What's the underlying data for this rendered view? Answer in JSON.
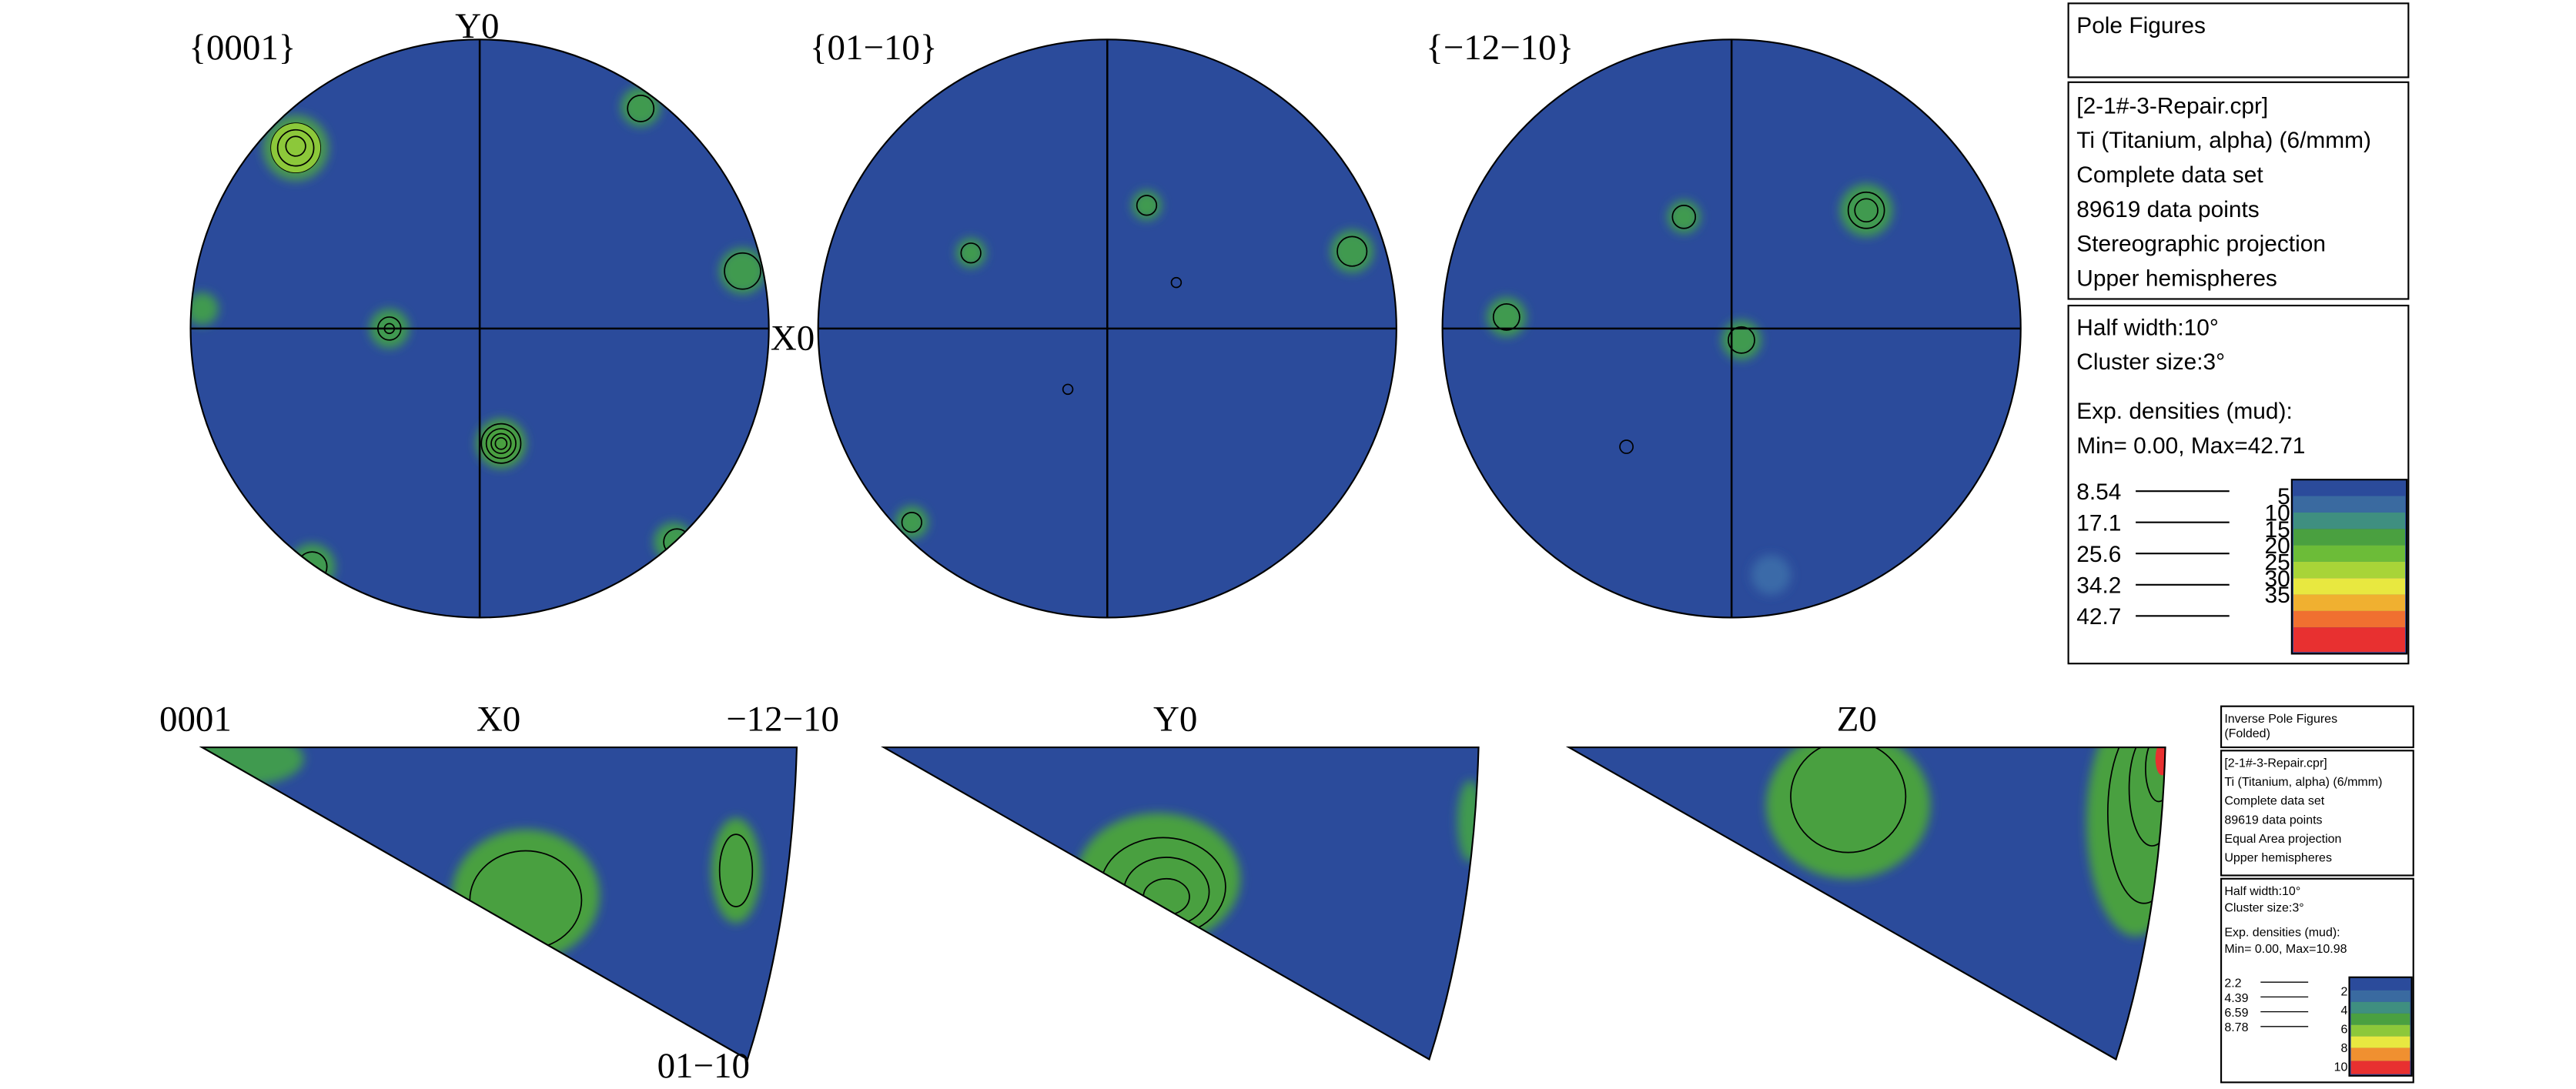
{
  "pole_figures": {
    "labels": [
      "{0001}",
      "{01−10}",
      "{−12−10}"
    ],
    "y_axis": "Y0",
    "x_axis": "X0"
  },
  "pole_legend": {
    "title": "Pole Figures",
    "info": [
      "[2-1#-3-Repair.cpr]",
      "Ti (Titanium, alpha) (6/mmm)",
      "Complete data set",
      "89619 data points",
      "Stereographic projection",
      "Upper hemispheres"
    ],
    "settings": [
      "Half width:10°",
      "Cluster size:3°"
    ],
    "densities": [
      "Exp. densities (mud):",
      "Min= 0.00, Max=42.71"
    ],
    "levels": [
      8.54,
      17.1,
      25.6,
      34.2,
      42.7
    ],
    "scale": [
      5,
      10,
      15,
      20,
      25,
      30,
      35
    ]
  },
  "inverse_pole_figures": {
    "corners": [
      "0001",
      "−12−10",
      "01−10"
    ],
    "labels": [
      "X0",
      "Y0",
      "Z0"
    ]
  },
  "ipf_legend": {
    "title": [
      "Inverse Pole Figures",
      "(Folded)"
    ],
    "info": [
      "[2-1#-3-Repair.cpr]",
      "Ti (Titanium, alpha) (6/mmm)",
      "Complete data set",
      "89619 data points",
      "Equal Area projection",
      "Upper hemispheres"
    ],
    "settings": [
      "Half width:10°",
      "Cluster size:3°"
    ],
    "densities": [
      "Exp. densities (mud):",
      "Min= 0.00, Max=10.98"
    ],
    "levels": [
      2.2,
      4.39,
      6.59,
      8.78
    ],
    "scale": [
      2,
      4,
      6,
      8,
      10
    ]
  }
}
